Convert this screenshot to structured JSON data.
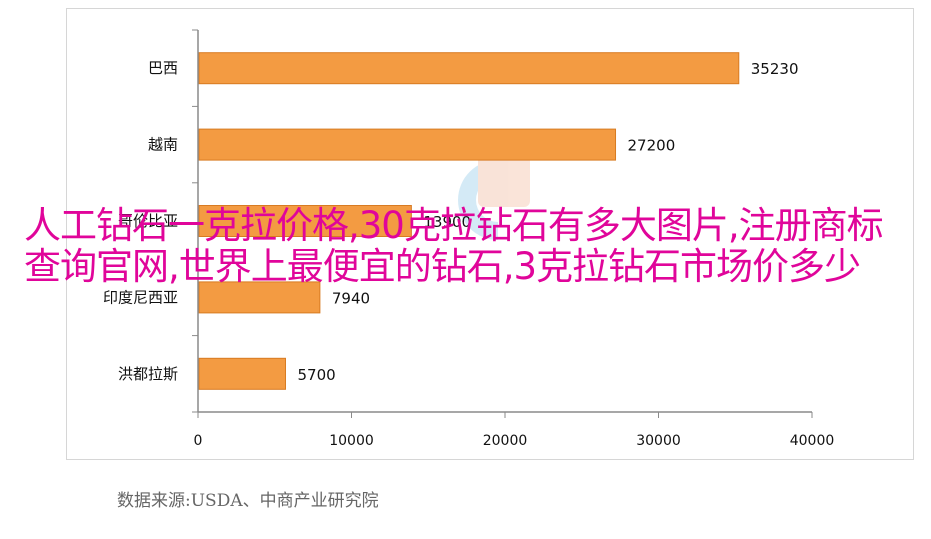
{
  "chart_data": {
    "type": "bar",
    "orientation": "horizontal",
    "categories": [
      "巴西",
      "越南",
      "哥伦比亚",
      "印度尼西亚",
      "洪都拉斯"
    ],
    "values": [
      35230,
      27200,
      13900,
      7940,
      5700
    ],
    "value_labels": [
      "35230",
      "27200",
      "13900",
      "7940",
      "5700"
    ],
    "xlim": [
      0,
      40000
    ],
    "xticks": [
      "0",
      "10000",
      "20000",
      "30000",
      "40000"
    ],
    "title": "",
    "xlabel": "",
    "ylabel": "",
    "grid": false,
    "bar_color": "#f39b42",
    "bar_edge_color": "#d87b22"
  },
  "overlay_text": "人工钻石一克拉价格,30克拉钻石有多大图片,注册商标查询官网,世界上最便宜的钻石,3克拉钻石市场价多少",
  "source_note": "数据来源:USDA、中商产业研究院",
  "overlay_color": "#e0059a"
}
